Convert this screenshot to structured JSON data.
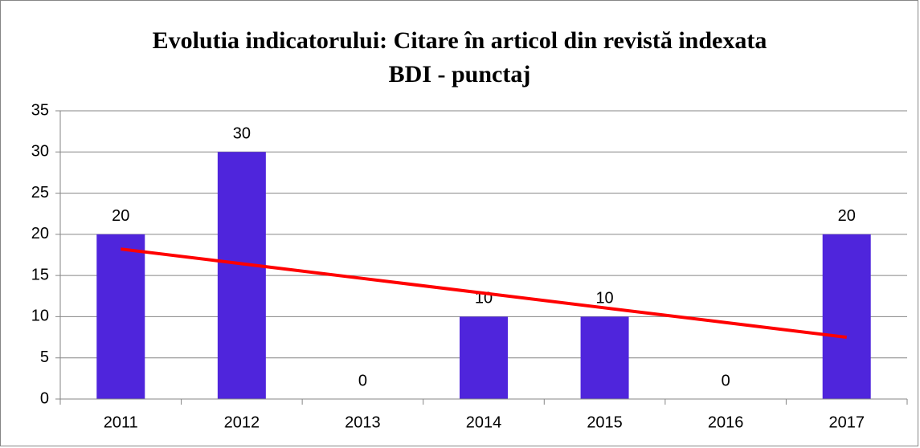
{
  "chart_data": {
    "type": "bar",
    "title": "Evolutia indicatorului: Citare în articol din revistă indexata BDI - punctaj",
    "categories": [
      "2011",
      "2012",
      "2013",
      "2014",
      "2015",
      "2016",
      "2017"
    ],
    "values": [
      20,
      30,
      0,
      10,
      10,
      0,
      20
    ],
    "color": "#4f25dc",
    "ylim": [
      0,
      35
    ],
    "yticks": [
      0,
      5,
      10,
      15,
      20,
      25,
      30,
      35
    ],
    "grid": true,
    "trendline": {
      "type": "linear",
      "color": "#ff0000"
    }
  }
}
